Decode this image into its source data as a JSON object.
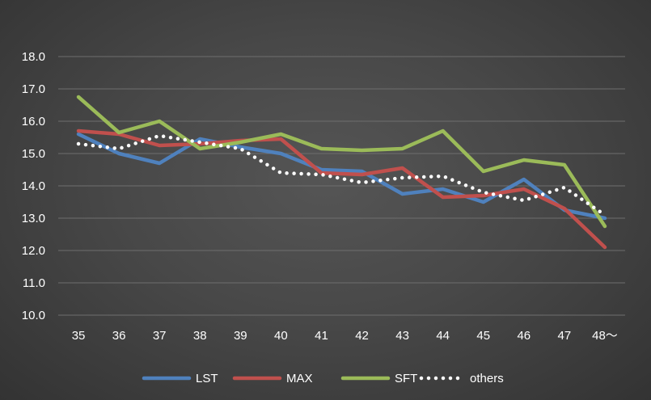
{
  "chart_data": {
    "type": "line",
    "title": "",
    "xlabel": "",
    "ylabel": "",
    "categories": [
      "35",
      "36",
      "37",
      "38",
      "39",
      "40",
      "41",
      "42",
      "43",
      "44",
      "45",
      "46",
      "47",
      "48～"
    ],
    "y_ticks": [
      "10.0",
      "11.0",
      "12.0",
      "13.0",
      "14.0",
      "15.0",
      "16.0",
      "17.0",
      "18.0"
    ],
    "ylim": [
      10,
      18
    ],
    "grid": true,
    "legend_position": "bottom",
    "series": [
      {
        "name": "LST",
        "color": "#4f81bd",
        "style": "solid",
        "values": [
          15.6,
          15.0,
          14.7,
          15.45,
          15.2,
          15.0,
          14.5,
          14.45,
          13.75,
          13.9,
          13.5,
          14.2,
          13.25,
          13.0
        ]
      },
      {
        "name": "MAX",
        "color": "#c0504d",
        "style": "solid",
        "values": [
          15.7,
          15.6,
          15.25,
          15.3,
          15.4,
          15.45,
          14.4,
          14.35,
          14.55,
          13.65,
          13.7,
          13.9,
          13.3,
          12.1
        ]
      },
      {
        "name": "SFT",
        "color": "#9bbb59",
        "style": "solid",
        "values": [
          16.75,
          15.65,
          16.0,
          15.15,
          15.35,
          15.6,
          15.15,
          15.1,
          15.15,
          15.7,
          14.45,
          14.8,
          14.65,
          12.75
        ]
      },
      {
        "name": "others",
        "color": "#ffffff",
        "style": "dotted",
        "values": [
          15.3,
          15.15,
          15.55,
          15.35,
          15.15,
          14.4,
          14.35,
          14.1,
          14.25,
          14.3,
          13.8,
          13.55,
          13.95,
          13.1
        ]
      }
    ]
  }
}
